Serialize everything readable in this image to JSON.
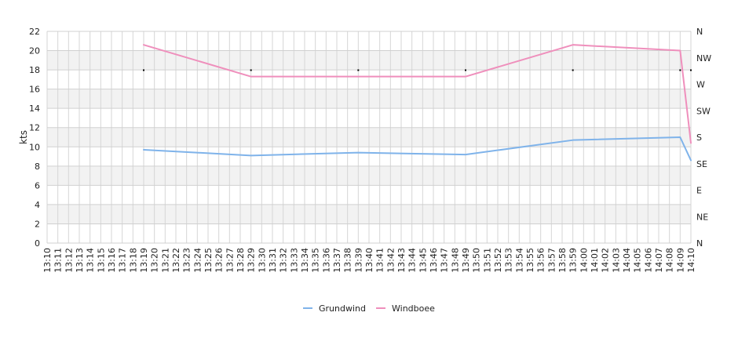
{
  "chart_data": {
    "type": "line",
    "ylabel": "kts",
    "ylim": [
      0,
      22
    ],
    "yticks": [
      0,
      2,
      4,
      6,
      8,
      10,
      12,
      14,
      16,
      18,
      20,
      22
    ],
    "direction_ticks": [
      "N",
      "NE",
      "E",
      "SE",
      "S",
      "SW",
      "W",
      "NW",
      "N"
    ],
    "x_labels": [
      "13:10",
      "13:11",
      "13:12",
      "13:13",
      "13:14",
      "13:15",
      "13:16",
      "13:17",
      "13:18",
      "13:19",
      "13:20",
      "13:21",
      "13:22",
      "13:23",
      "13:24",
      "13:25",
      "13:26",
      "13:27",
      "13:28",
      "13:29",
      "13:30",
      "13:31",
      "13:32",
      "13:33",
      "13:34",
      "13:35",
      "13:36",
      "13:37",
      "13:38",
      "13:39",
      "13:40",
      "13:41",
      "13:42",
      "13:43",
      "13:44",
      "13:45",
      "13:46",
      "13:47",
      "13:48",
      "13:49",
      "13:50",
      "13:51",
      "13:52",
      "13:53",
      "13:54",
      "13:55",
      "13:56",
      "13:57",
      "13:58",
      "13:59",
      "14:00",
      "14:01",
      "14:02",
      "14:03",
      "14:04",
      "14:05",
      "14:06",
      "14:07",
      "14:08",
      "14:09",
      "14:10"
    ],
    "grid": true,
    "legend_position": "bottom",
    "series": [
      {
        "name": "Grundwind",
        "color": "#7fb3ea",
        "points": [
          {
            "x": "13:19",
            "y": 9.7
          },
          {
            "x": "13:29",
            "y": 9.1
          },
          {
            "x": "13:39",
            "y": 9.4
          },
          {
            "x": "13:49",
            "y": 9.2
          },
          {
            "x": "13:59",
            "y": 10.7
          },
          {
            "x": "14:09",
            "y": 11.0
          },
          {
            "x": "14:10",
            "y": 8.6
          }
        ]
      },
      {
        "name": "Windboee",
        "color": "#ef8fbc",
        "points": [
          {
            "x": "13:19",
            "y": 20.6
          },
          {
            "x": "13:29",
            "y": 17.3
          },
          {
            "x": "13:39",
            "y": 17.3
          },
          {
            "x": "13:49",
            "y": 17.3
          },
          {
            "x": "13:59",
            "y": 20.6
          },
          {
            "x": "14:09",
            "y": 20.0
          },
          {
            "x": "14:10",
            "y": 10.4
          }
        ]
      }
    ],
    "direction_points": [
      {
        "x": "13:19",
        "direction": "W"
      },
      {
        "x": "13:29",
        "direction": "W"
      },
      {
        "x": "13:39",
        "direction": "W"
      },
      {
        "x": "13:49",
        "direction": "W"
      },
      {
        "x": "13:59",
        "direction": "W"
      },
      {
        "x": "14:09",
        "direction": "W"
      },
      {
        "x": "14:10",
        "direction": "W"
      }
    ]
  }
}
